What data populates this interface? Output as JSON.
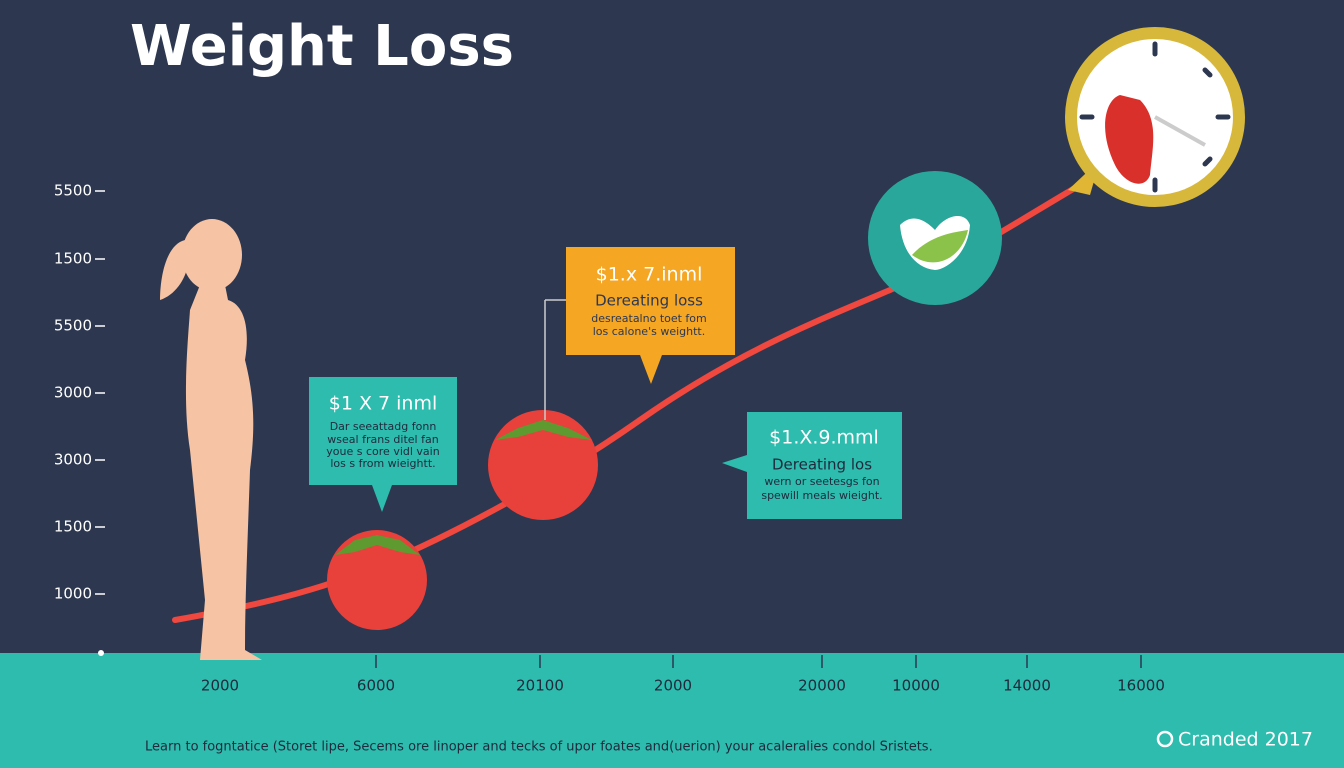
{
  "title": "Weight Loss",
  "y_labels": [
    "5500",
    "1500",
    "5500",
    "3000",
    "3000",
    "1500",
    "1000"
  ],
  "x_labels": [
    "2000",
    "6000",
    "20100",
    "2000",
    "20000",
    "10000",
    "14000",
    "16000"
  ],
  "callouts": [
    {
      "heading": "$1 X 7 inml",
      "lines": [
        "Dar seeattadg fonn",
        "wseal frans ditel fan",
        "youe s core vidl vain",
        "los s from wieightt."
      ]
    },
    {
      "heading": "$1.x 7.inml",
      "lines": [
        "Dereating loss",
        "desreatalno toet fom",
        "los calone's weightt."
      ]
    },
    {
      "heading": "$1.X.9.mml",
      "lines": [
        "Dereating los",
        "wern or seetesgs fon",
        "spewill meals wieight."
      ]
    }
  ],
  "footer": "Learn to fogntatice (Storet lipe, Secems ore linoper and tecks of upor foates and(uerion) your acaleralies condol Sristets.",
  "brand": "Cranded 2017"
}
